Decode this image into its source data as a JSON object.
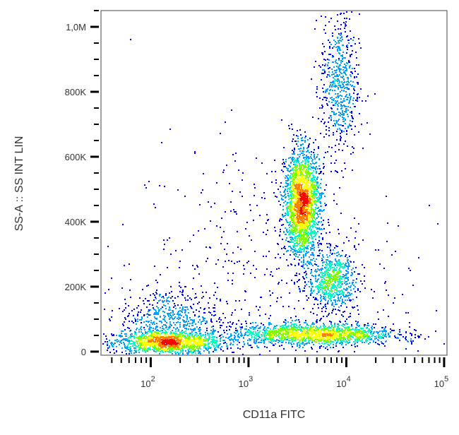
{
  "chart_data": {
    "type": "scatter",
    "subtype": "density-colored flow cytometry dot plot",
    "xlabel": "CD11a FITC",
    "ylabel": "SS-A :: SS INT LIN",
    "xscale": "log",
    "xlim": [
      31,
      107000
    ],
    "ylim": [
      -11000,
      1050000
    ],
    "x_ticks": [
      {
        "value": 100,
        "base": "10",
        "exp": "2"
      },
      {
        "value": 1000,
        "base": "10",
        "exp": "3"
      },
      {
        "value": 10000,
        "base": "10",
        "exp": "4"
      },
      {
        "value": 100000,
        "base": "10",
        "exp": "5"
      }
    ],
    "y_ticks": [
      {
        "value": 0,
        "label": "0"
      },
      {
        "value": 200000,
        "label": "200K"
      },
      {
        "value": 400000,
        "label": "400K"
      },
      {
        "value": 600000,
        "label": "600K"
      },
      {
        "value": 800000,
        "label": "800K"
      },
      {
        "value": 1000000,
        "label": "1,0M"
      }
    ],
    "colormap": [
      "#0000ff",
      "#00a0ff",
      "#00ffc0",
      "#80ff00",
      "#ffff00",
      "#ff8000",
      "#ff0000"
    ],
    "populations": [
      {
        "x_center": 150,
        "x_log_sd": 0.28,
        "y_center": 30000,
        "y_sd": 18000,
        "events": 1400
      },
      {
        "x_center": 150,
        "x_log_sd": 0.25,
        "y_center": 110000,
        "y_sd": 45000,
        "events": 500
      },
      {
        "x_center": 4500,
        "x_log_sd": 0.42,
        "y_center": 55000,
        "y_sd": 17000,
        "events": 1600
      },
      {
        "x_center": 3500,
        "x_log_sd": 0.09,
        "y_center": 460000,
        "y_sd": 80000,
        "events": 2200
      },
      {
        "x_center": 7000,
        "x_log_sd": 0.12,
        "y_center": 220000,
        "y_sd": 45000,
        "events": 700
      },
      {
        "x_center": 8500,
        "x_log_sd": 0.1,
        "y_center": 820000,
        "y_sd": 110000,
        "events": 600
      },
      {
        "x_center": 1500,
        "x_log_sd": 0.7,
        "y_center": 250000,
        "y_sd": 200000,
        "events": 500
      }
    ]
  }
}
